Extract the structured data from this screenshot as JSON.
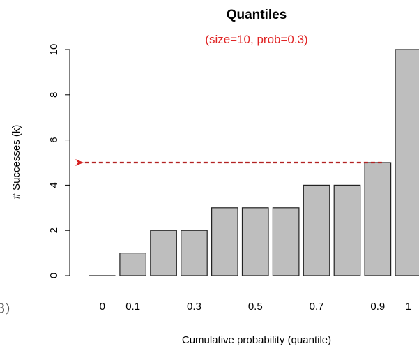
{
  "chart_data": {
    "type": "bar",
    "title": "Quantiles",
    "subtitle": "(size=10, prob=0.3)",
    "xlabel": "Cumulative probability (quantile)",
    "ylabel": "# Successes (k)",
    "x": [
      0,
      0.1,
      0.2,
      0.3,
      0.4,
      0.5,
      0.6,
      0.7,
      0.8,
      0.9,
      1
    ],
    "values": [
      0,
      1,
      2,
      2,
      3,
      3,
      3,
      4,
      4,
      5,
      10
    ],
    "x_tick_labels": [
      {
        "index": 0,
        "label": "0"
      },
      {
        "index": 1,
        "label": "0.1"
      },
      {
        "index": 3,
        "label": "0.3"
      },
      {
        "index": 5,
        "label": "0.5"
      },
      {
        "index": 7,
        "label": "0.7"
      },
      {
        "index": 9,
        "label": "0.9"
      },
      {
        "index": 10,
        "label": "1"
      }
    ],
    "y_ticks": [
      "0",
      "2",
      "4",
      "6",
      "8",
      "10"
    ],
    "ylim": [
      0,
      10
    ],
    "grid": false,
    "annotation": {
      "type": "dashed-arrow",
      "from_x": 0.9,
      "value": 5,
      "points_to": "y-axis"
    },
    "colors": {
      "bar_fill": "#bebebe",
      "bar_stroke": "#222222",
      "accent": "#e02424",
      "arrow": "#b22222"
    }
  },
  "corner_text": "3)"
}
